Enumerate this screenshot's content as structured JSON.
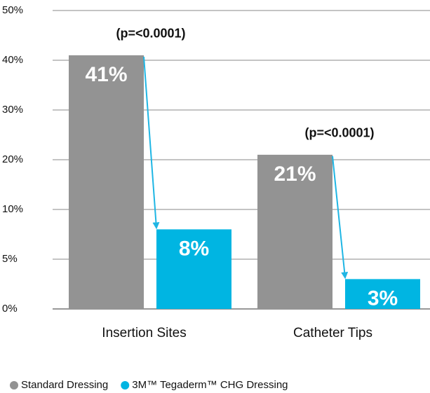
{
  "chart_data": {
    "type": "bar",
    "categories": [
      "Insertion Sites",
      "Catheter Tips"
    ],
    "series": [
      {
        "name": "Standard Dressing",
        "color": "#939393",
        "values": [
          41,
          21
        ],
        "value_labels": [
          "41%",
          "21%"
        ]
      },
      {
        "name": "3M™ Tegaderm™ CHG Dressing",
        "color": "#00b5e2",
        "values": [
          8,
          3
        ],
        "value_labels": [
          "8%",
          "3%"
        ]
      }
    ],
    "annotations": [
      "(p=<0.0001)",
      "(p=<0.0001)"
    ],
    "ylim": [
      0,
      50
    ],
    "yticks": [
      {
        "value": 0,
        "label": "0%"
      },
      {
        "value": 5,
        "label": "5%"
      },
      {
        "value": 10,
        "label": "10%"
      },
      {
        "value": 20,
        "label": "20%"
      },
      {
        "value": 30,
        "label": "30%"
      },
      {
        "value": 40,
        "label": "40%"
      },
      {
        "value": 50,
        "label": "50%"
      }
    ],
    "grid": true
  }
}
